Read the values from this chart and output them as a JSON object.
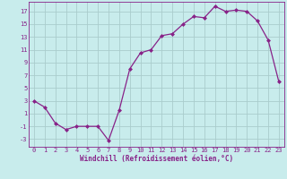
{
  "x": [
    0,
    1,
    2,
    3,
    4,
    5,
    6,
    7,
    8,
    9,
    10,
    11,
    12,
    13,
    14,
    15,
    16,
    17,
    18,
    19,
    20,
    21,
    22,
    23
  ],
  "y": [
    3,
    2,
    -0.5,
    -1.5,
    -1,
    -1,
    -1,
    -3.2,
    1.5,
    8,
    10.5,
    11,
    13.2,
    13.5,
    15,
    16.2,
    16,
    17.8,
    17,
    17.2,
    17,
    15.5,
    12.5,
    6
  ],
  "line_color": "#882288",
  "marker": "D",
  "marker_size": 2.0,
  "bg_color": "#c8ecec",
  "grid_color": "#aacccc",
  "xlabel": "Windchill (Refroidissement éolien,°C)",
  "yticks": [
    -3,
    -1,
    1,
    3,
    5,
    7,
    9,
    11,
    13,
    15,
    17
  ],
  "xticks": [
    0,
    1,
    2,
    3,
    4,
    5,
    6,
    7,
    8,
    9,
    10,
    11,
    12,
    13,
    14,
    15,
    16,
    17,
    18,
    19,
    20,
    21,
    22,
    23
  ],
  "xlim": [
    -0.5,
    23.5
  ],
  "ylim": [
    -4.2,
    18.5
  ],
  "tick_color": "#882288",
  "label_color": "#882288",
  "tick_fontsize": 5.0,
  "xlabel_fontsize": 5.5
}
